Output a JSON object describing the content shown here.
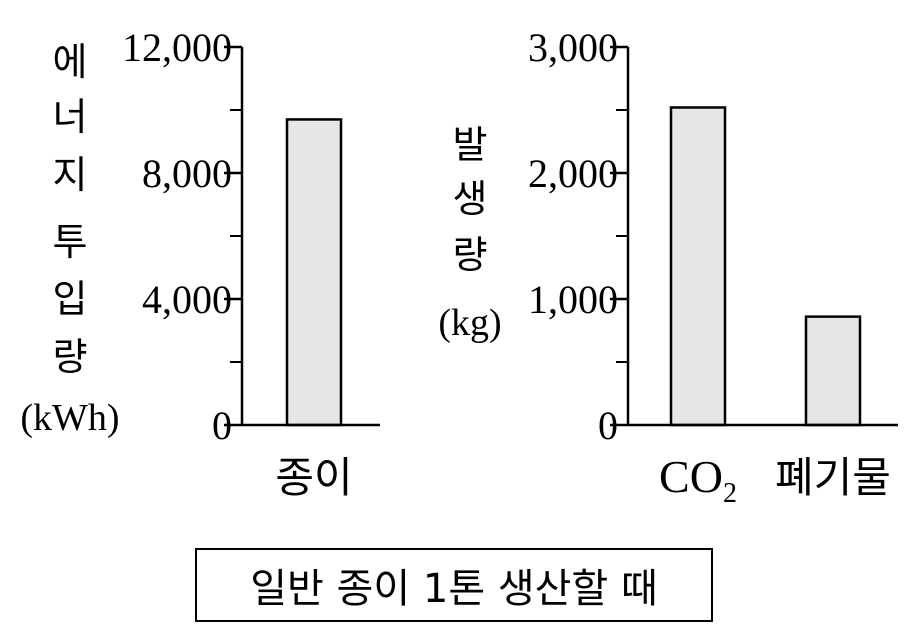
{
  "chart_data": [
    {
      "type": "bar",
      "categories": [
        "종이"
      ],
      "values": [
        9700
      ],
      "ylabel": "에너지 투입량",
      "ylabel_unit": "(kWh)",
      "ylim": [
        0,
        12000
      ],
      "yticks": [
        0,
        4000,
        8000,
        12000
      ],
      "ytick_labels": [
        "0",
        "4,000",
        "8,000",
        "12,000"
      ],
      "bar_color": "#e6e6e6"
    },
    {
      "type": "bar",
      "categories": [
        "CO",
        "폐기물"
      ],
      "category_subscripts": [
        "2",
        ""
      ],
      "values": [
        2520,
        860
      ],
      "ylabel": "발생량",
      "ylabel_unit": "(kg)",
      "ylim": [
        0,
        3000
      ],
      "yticks": [
        0,
        1000,
        2000,
        3000
      ],
      "ytick_labels": [
        "0",
        "1,000",
        "2,000",
        "3,000"
      ],
      "bar_color": "#e6e6e6"
    }
  ],
  "caption": "일반 종이 1톤 생산할 때"
}
